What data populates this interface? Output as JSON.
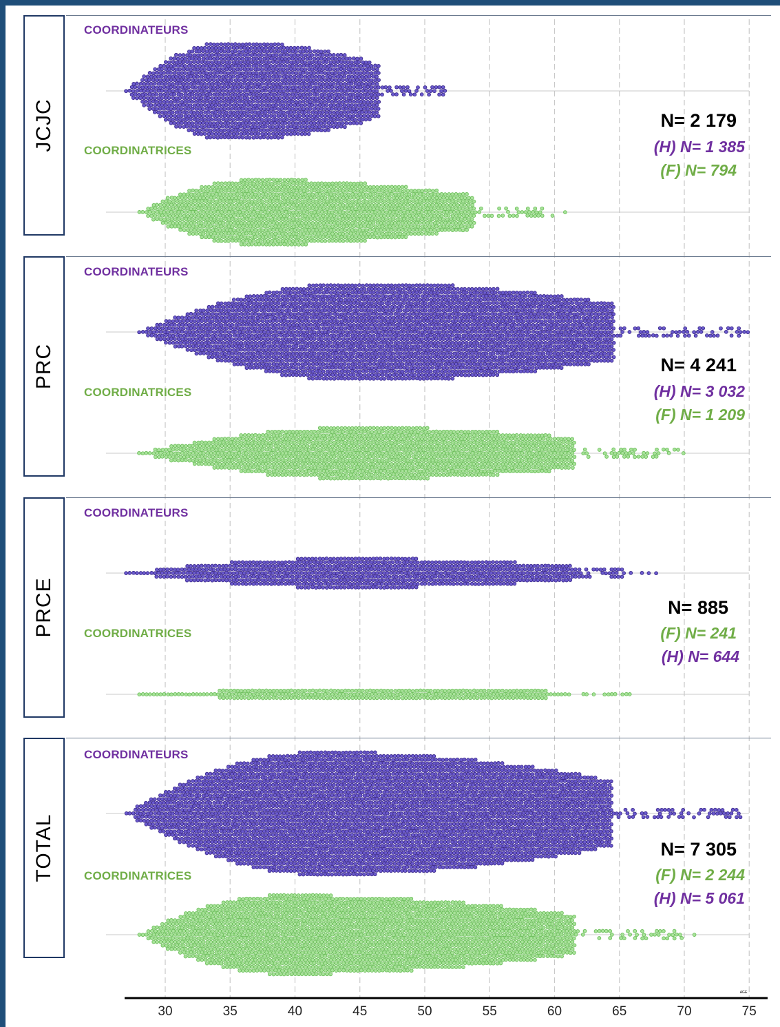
{
  "colors": {
    "male": "#3d2a8c",
    "male_fill": "#6a5acd",
    "female": "#6cbf5a",
    "female_fill": "#a8e29a",
    "male_label": "#7030a0",
    "female_label": "#70ad47",
    "frame": "#1f4e79"
  },
  "chart_data": {
    "type": "scatter",
    "subtype": "beeswarm",
    "xlabel": "AGE",
    "xlim": [
      27,
      75
    ],
    "xticks": [
      30,
      35,
      40,
      45,
      50,
      55,
      60,
      65,
      70,
      75
    ],
    "grid": "vertical dashed",
    "panels": [
      {
        "name": "JCJC",
        "total": "N= 2 179",
        "stats": [
          {
            "text": "(H) N= 1 385",
            "sex": "H"
          },
          {
            "text": "(F) N= 794",
            "sex": "F"
          }
        ],
        "series": [
          {
            "name": "COORDINATEURS",
            "sex": "H",
            "n": 1385,
            "min": 27,
            "max": 52,
            "peak": 35,
            "halfwidth": 72
          },
          {
            "name": "COORDINATRICES",
            "sex": "F",
            "n": 794,
            "min": 28,
            "max": 61,
            "peak": 37,
            "halfwidth": 48
          }
        ]
      },
      {
        "name": "PRC",
        "total": "N= 4 241",
        "stats": [
          {
            "text": "(H) N= 3 032",
            "sex": "H"
          },
          {
            "text": "(F) N= 1 209",
            "sex": "F"
          }
        ],
        "series": [
          {
            "name": "COORDINATEURS",
            "sex": "H",
            "n": 3032,
            "min": 28,
            "max": 75,
            "peak": 45,
            "halfwidth": 72
          },
          {
            "name": "COORDINATRICES",
            "sex": "F",
            "n": 1209,
            "min": 28,
            "max": 71,
            "peak": 45,
            "halfwidth": 38
          }
        ]
      },
      {
        "name": "PRCE",
        "total": "N= 885",
        "stats": [
          {
            "text": "(F) N= 241",
            "sex": "F"
          },
          {
            "text": "(H) N= 644",
            "sex": "H"
          }
        ],
        "series": [
          {
            "name": "COORDINATEURS",
            "sex": "H",
            "n": 644,
            "min": 27,
            "max": 68,
            "peak": 44,
            "halfwidth": 22
          },
          {
            "name": "COORDINATRICES",
            "sex": "F",
            "n": 241,
            "min": 28,
            "max": 67,
            "peak": 45,
            "halfwidth": 9
          }
        ]
      },
      {
        "name": "TOTAL",
        "total": "N= 7 305",
        "stats": [
          {
            "text": "(F) N= 2 244",
            "sex": "F"
          },
          {
            "text": "(H) N= 5 061",
            "sex": "H"
          }
        ],
        "series": [
          {
            "name": "COORDINATEURS",
            "sex": "H",
            "n": 5061,
            "min": 27,
            "max": 75,
            "peak": 42,
            "halfwidth": 90
          },
          {
            "name": "COORDINATRICES",
            "sex": "F",
            "n": 2244,
            "min": 28,
            "max": 71,
            "peak": 39,
            "halfwidth": 58
          }
        ]
      }
    ]
  }
}
